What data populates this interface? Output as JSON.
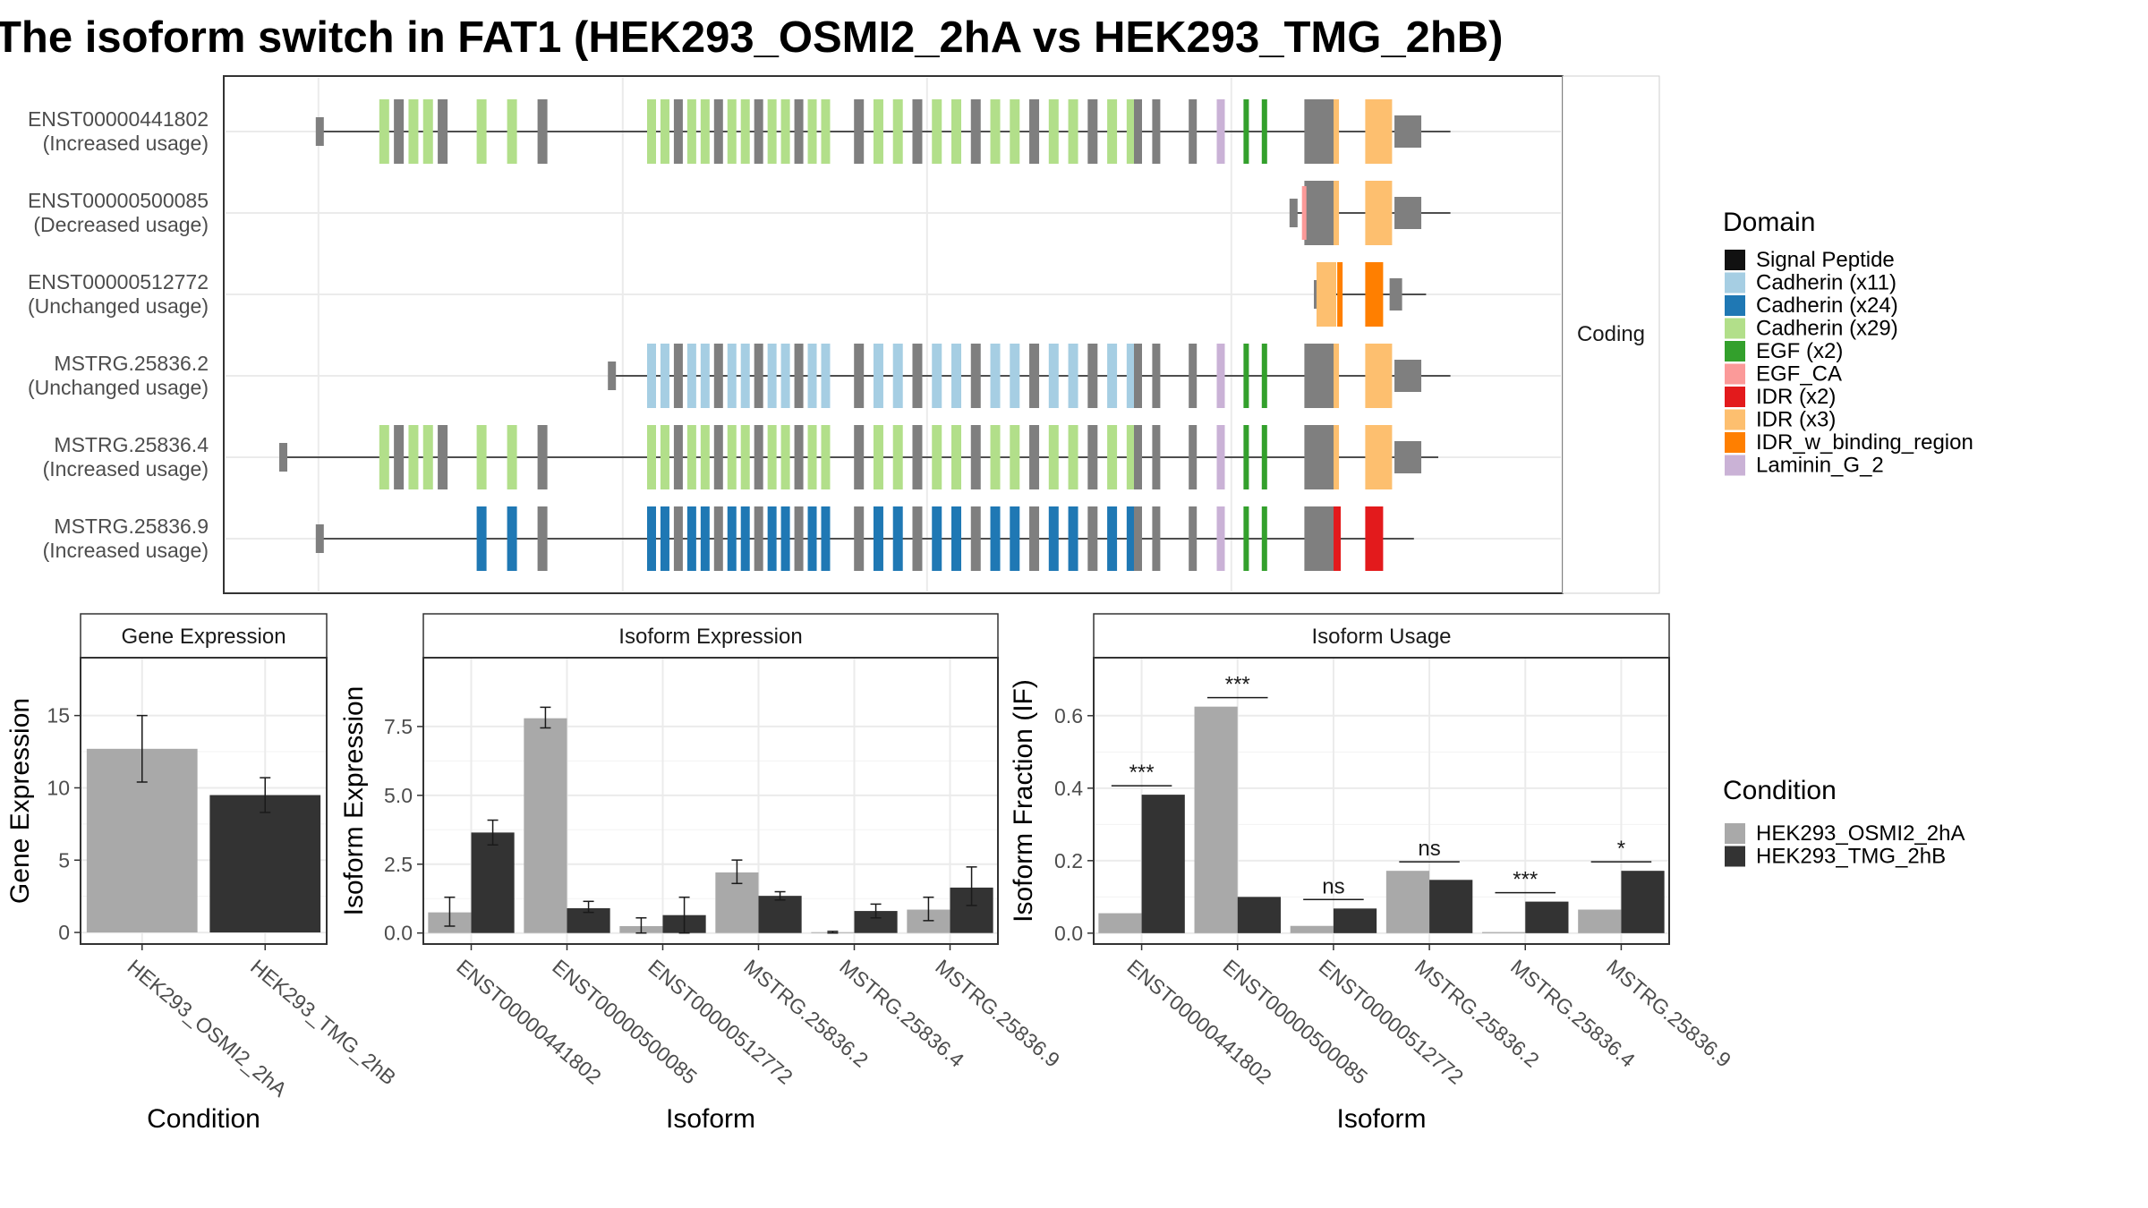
{
  "title": "The isoform switch in FAT1 (HEK293_OSMI2_2hA vs HEK293_TMG_2hB)",
  "colors": {
    "cond_a": "#a9a9a9",
    "cond_b": "#333333",
    "exon_plain": "#7f7f7f",
    "intron": "#1a1a1a",
    "grid": "#ebebeb",
    "strip_bg": "#ffffff",
    "panel_border": "#333333"
  },
  "domain_legend": {
    "title": "Domain",
    "items": [
      {
        "label": "Signal Peptide",
        "color": "#111111"
      },
      {
        "label": "Cadherin (x11)",
        "color": "#a6cee3"
      },
      {
        "label": "Cadherin (x24)",
        "color": "#1f78b4"
      },
      {
        "label": "Cadherin (x29)",
        "color": "#b2df8a"
      },
      {
        "label": "EGF (x2)",
        "color": "#33a02c"
      },
      {
        "label": "EGF_CA",
        "color": "#fb9a99"
      },
      {
        "label": "IDR (x2)",
        "color": "#e31a1c"
      },
      {
        "label": "IDR (x3)",
        "color": "#fdbf6f"
      },
      {
        "label": "IDR_w_binding_region",
        "color": "#ff7f00"
      },
      {
        "label": "Laminin_G_2",
        "color": "#cab2d6"
      }
    ]
  },
  "condition_legend": {
    "title": "Condition",
    "items": [
      {
        "label": "HEK293_OSMI2_2hA",
        "color": "#a9a9a9"
      },
      {
        "label": "HEK293_TMG_2hB",
        "color": "#333333"
      }
    ]
  },
  "transcripts": {
    "facet_label": "Coding",
    "rows": [
      {
        "id": "ENST00000441802",
        "status": "(Increased usage)",
        "theme": "green",
        "start": 0.03,
        "end": 0.96,
        "exon_from": 0.08,
        "ends": "tail"
      },
      {
        "id": "ENST00000500085",
        "status": "(Decreased usage)",
        "theme": "none",
        "start": 0.83,
        "end": 0.96,
        "exon_from": 0.83,
        "ends": "egfca"
      },
      {
        "id": "ENST00000512772",
        "status": "(Unchanged usage)",
        "theme": "orange",
        "start": 0.85,
        "end": 0.94,
        "exon_from": 0.85,
        "ends": "short"
      },
      {
        "id": "MSTRG.25836.2",
        "status": "(Unchanged usage)",
        "theme": "lightblue",
        "start": 0.27,
        "end": 0.96,
        "exon_from": 0.28,
        "ends": "tail"
      },
      {
        "id": "MSTRG.25836.4",
        "status": "(Increased usage)",
        "theme": "green",
        "start": 0.0,
        "end": 0.95,
        "exon_from": 0.08,
        "ends": "tail"
      },
      {
        "id": "MSTRG.25836.9",
        "status": "(Increased usage)",
        "theme": "darkblue",
        "start": 0.03,
        "end": 0.93,
        "exon_from": 0.15,
        "ends": "red"
      }
    ]
  },
  "chart_data": [
    {
      "type": "bar",
      "title": "Gene Expression",
      "xlabel": "Condition",
      "ylabel": "Gene Expression",
      "categories": [
        "HEK293_OSMI2_2hA",
        "HEK293_TMG_2hB"
      ],
      "series": [
        {
          "values": [
            12.7,
            9.5
          ],
          "err_low": [
            10.4,
            8.3
          ],
          "err_high": [
            15.0,
            10.7
          ]
        }
      ],
      "ylim": [
        -0.8,
        19.0
      ],
      "yticks": [
        0,
        5,
        10,
        15
      ],
      "grid": true
    },
    {
      "type": "bar",
      "title": "Isoform Expression",
      "xlabel": "Isoform",
      "ylabel": "Isoform Expression",
      "categories": [
        "ENST00000441802",
        "ENST00000500085",
        "ENST00000512772",
        "MSTRG.25836.2",
        "MSTRG.25836.4",
        "MSTRG.25836.9"
      ],
      "series": [
        {
          "name": "HEK293_OSMI2_2hA",
          "values": [
            0.75,
            7.8,
            0.25,
            2.2,
            0.03,
            0.85
          ],
          "err_low": [
            0.25,
            7.45,
            0.0,
            1.8,
            0.0,
            0.45
          ],
          "err_high": [
            1.3,
            8.2,
            0.55,
            2.65,
            0.06,
            1.3
          ]
        },
        {
          "name": "HEK293_TMG_2hB",
          "values": [
            3.65,
            0.9,
            0.65,
            1.35,
            0.8,
            1.65
          ],
          "err_low": [
            3.2,
            0.75,
            0.0,
            1.2,
            0.55,
            1.0
          ],
          "err_high": [
            4.1,
            1.15,
            1.3,
            1.5,
            1.05,
            2.4
          ]
        }
      ],
      "ylim": [
        -0.4,
        10.0
      ],
      "yticks": [
        0.0,
        2.5,
        5.0,
        7.5
      ],
      "ytick_labels": [
        "0.0",
        "2.5",
        "5.0",
        "7.5"
      ],
      "grid": true
    },
    {
      "type": "bar",
      "title": "Isoform Usage",
      "xlabel": "Isoform",
      "ylabel": "Isoform Fraction (IF)",
      "categories": [
        "ENST00000441802",
        "ENST00000500085",
        "ENST00000512772",
        "MSTRG.25836.2",
        "MSTRG.25836.4",
        "MSTRG.25836.9"
      ],
      "series": [
        {
          "name": "HEK293_OSMI2_2hA",
          "values": [
            0.055,
            0.625,
            0.02,
            0.172,
            0.003,
            0.065
          ]
        },
        {
          "name": "HEK293_TMG_2hB",
          "values": [
            0.382,
            0.1,
            0.068,
            0.147,
            0.087,
            0.172
          ]
        }
      ],
      "significance": [
        "***",
        "***",
        "ns",
        "ns",
        "***",
        "*"
      ],
      "ylim": [
        -0.03,
        0.76
      ],
      "yticks": [
        0.0,
        0.2,
        0.4,
        0.6
      ],
      "ytick_labels": [
        "0.0",
        "0.2",
        "0.4",
        "0.6"
      ],
      "grid": true
    }
  ]
}
